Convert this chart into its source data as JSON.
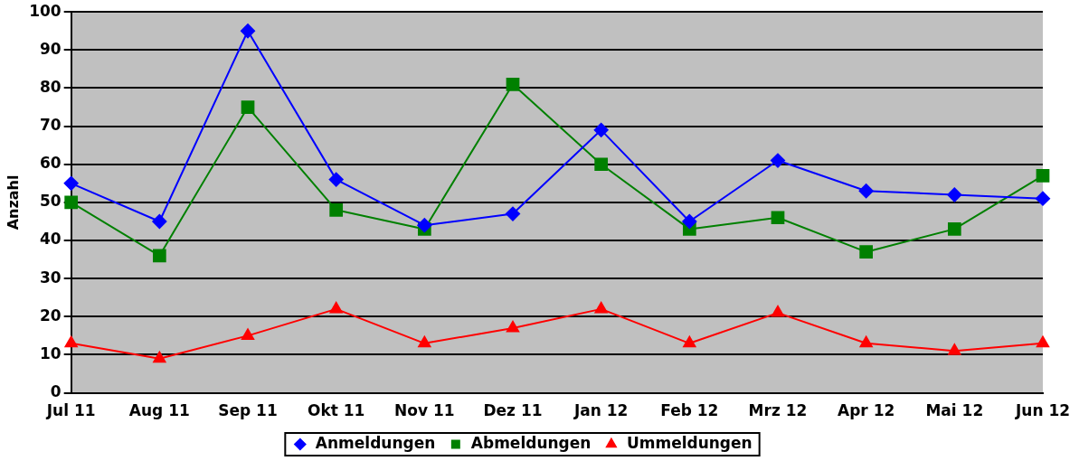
{
  "chart_data": {
    "type": "line",
    "ylabel": "Anzahl",
    "categories": [
      "Jul 11",
      "Aug 11",
      "Sep 11",
      "Okt 11",
      "Nov 11",
      "Dez 11",
      "Jan 12",
      "Feb 12",
      "Mrz 12",
      "Apr 12",
      "Mai 12",
      "Jun 12"
    ],
    "series": [
      {
        "name": "Anmeldungen",
        "color": "#0000ff",
        "marker": "diamond",
        "values": [
          55,
          45,
          95,
          56,
          44,
          47,
          69,
          45,
          61,
          53,
          52,
          51
        ]
      },
      {
        "name": "Abmeldungen",
        "color": "#008000",
        "marker": "square",
        "values": [
          50,
          36,
          75,
          48,
          43,
          81,
          60,
          43,
          46,
          37,
          43,
          57
        ]
      },
      {
        "name": "Ummeldungen",
        "color": "#ff0000",
        "marker": "triangle",
        "values": [
          13,
          9,
          15,
          22,
          13,
          17,
          22,
          13,
          21,
          13,
          11,
          13
        ]
      }
    ],
    "ylim": [
      0,
      100
    ],
    "yticks": [
      0,
      10,
      20,
      30,
      40,
      50,
      60,
      70,
      80,
      90,
      100
    ],
    "grid": "y",
    "legend": "bottom",
    "line_style": "solid"
  }
}
